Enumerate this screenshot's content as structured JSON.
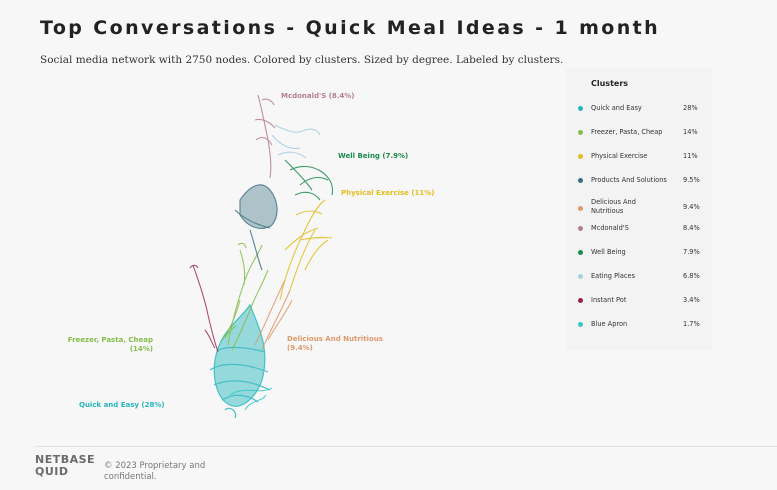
{
  "header": {
    "title": "Top Conversations - Quick Meal Ideas - 1 month",
    "subtitle": "Social media network with 2750 nodes. Colored by clusters. Sized by degree. Labeled by clusters."
  },
  "network": {
    "labels": {
      "mcdonalds": "Mcdonald'S (8.4%)",
      "well_being": "Well Being (7.9%)",
      "physical_exercise": "Physical Exercise (11%)",
      "freezer_line1": "Freezer, Pasta, Cheap",
      "freezer_line2": "(14%)",
      "delicious_line1": "Delicious And Nutritious",
      "delicious_line2": "(9.4%)",
      "quick_easy": "Quick and Easy (28%)"
    }
  },
  "legend": {
    "title": "Clusters",
    "items": [
      {
        "name": "Quick and Easy",
        "pct": "28%",
        "color": "#27b6bd"
      },
      {
        "name": "Freezer, Pasta, Cheap",
        "pct": "14%",
        "color": "#86bd4a"
      },
      {
        "name": "Physical Exercise",
        "pct": "11%",
        "color": "#e1be1f"
      },
      {
        "name": "Products And Solutions",
        "pct": "9.5%",
        "color": "#3a6f80"
      },
      {
        "name": "Delicious And Nutritious",
        "pct": "9.4%",
        "color": "#dd9a6c"
      },
      {
        "name": "Mcdonald'S",
        "pct": "8.4%",
        "color": "#b47f8c"
      },
      {
        "name": "Well Being",
        "pct": "7.9%",
        "color": "#1b8a4c"
      },
      {
        "name": "Eating Places",
        "pct": "6.8%",
        "color": "#a9d0e2"
      },
      {
        "name": "Instant Pot",
        "pct": "3.4%",
        "color": "#9b1f4b"
      },
      {
        "name": "Blue Apron",
        "pct": "1.7%",
        "color": "#35c5c9"
      }
    ]
  },
  "footer": {
    "logo_top": "NETBASE",
    "logo_bottom": "QUID",
    "copyright": "© 2023 Proprietary and confidential."
  }
}
